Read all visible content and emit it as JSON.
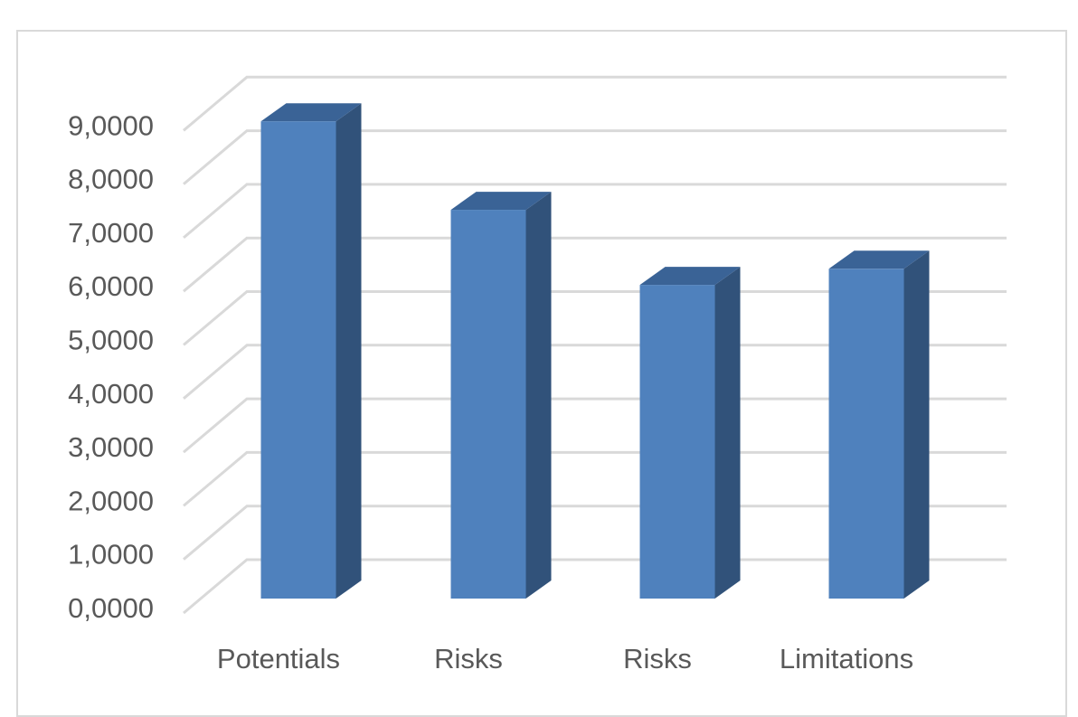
{
  "chart_data": {
    "type": "bar",
    "style": "3d-column",
    "categories": [
      "Potentials",
      "Risks",
      "Risks",
      "Limitations"
    ],
    "values": [
      8.9,
      7.25,
      5.85,
      6.15
    ],
    "ylim": [
      0,
      9
    ],
    "ytick_values": [
      0,
      1,
      2,
      3,
      4,
      5,
      6,
      7,
      8,
      9
    ],
    "ytick_labels": [
      "0,0000",
      "1,0000",
      "2,0000",
      "3,0000",
      "4,0000",
      "5,0000",
      "6,0000",
      "7,0000",
      "8,0000",
      "9,0000"
    ],
    "grid": true,
    "legend": "none",
    "colors": {
      "bar_front": "#4f81bd",
      "bar_side": "#31527a",
      "bar_top": "#3a6396",
      "gridline": "#d9d9d9",
      "text": "#595959"
    }
  }
}
